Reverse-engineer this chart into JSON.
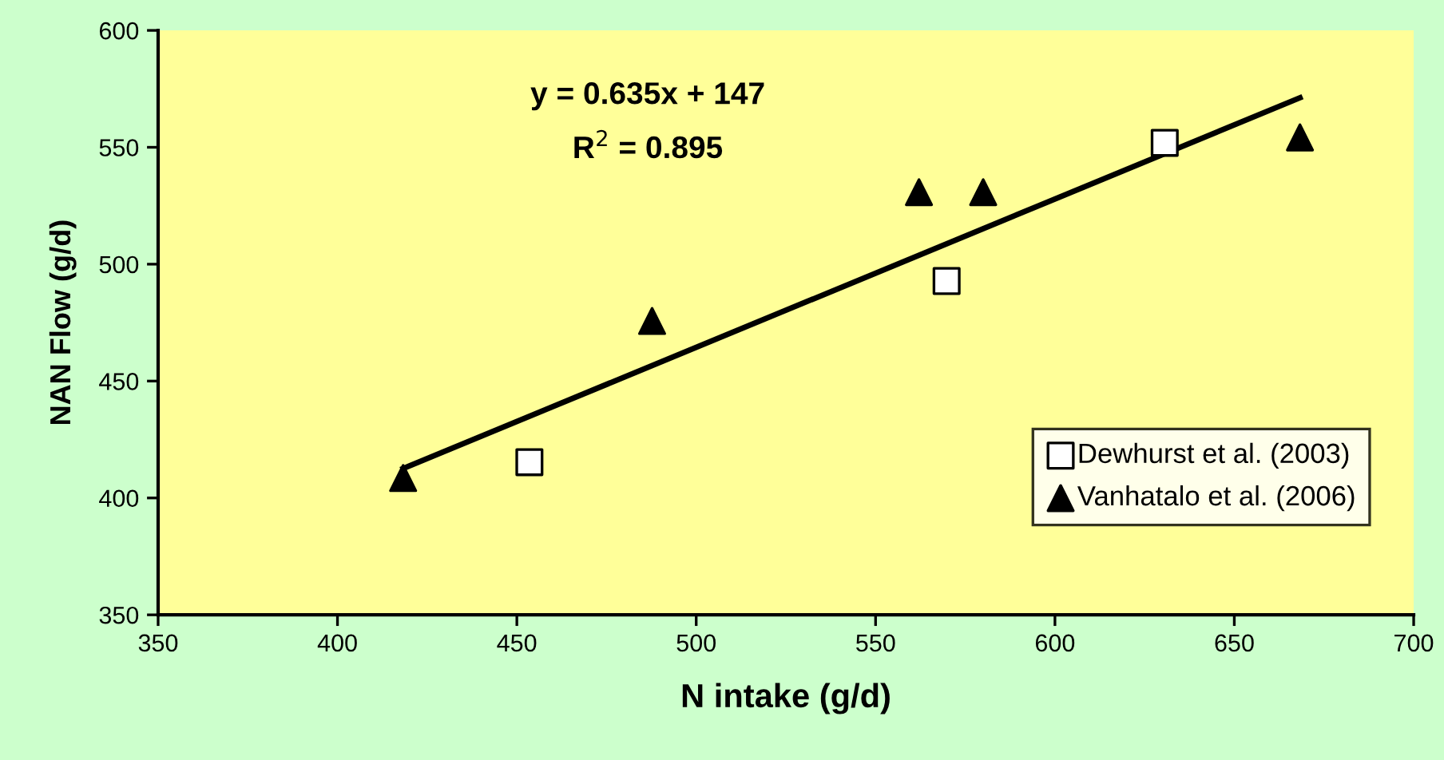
{
  "chart_data": {
    "type": "scatter",
    "xlabel": "N intake (g/d)",
    "ylabel": "NAN Flow (g/d)",
    "series": [
      {
        "name": "Dewhurst et al. (2003)",
        "color": "#ffffff",
        "marker": "square",
        "x": [
          453.5,
          569.8,
          630.6
        ],
        "values": [
          415.3,
          492.8,
          551.9
        ]
      },
      {
        "name": "Vanhatalo et al. (2006)",
        "color": "#000000",
        "marker": "triangle",
        "x": [
          418.3,
          487.7,
          562.1,
          580,
          668.3
        ],
        "values": [
          408.5,
          475.7,
          530.8,
          530.8,
          554.2
        ]
      },
      {
        "type": "line",
        "color": "#000000",
        "x": [
          418.3,
          668.3
        ],
        "values": [
          412.6,
          571.2
        ]
      }
    ],
    "annotations": [
      "y = 0.635x + 147",
      "R$^{2}$ = 0.895"
    ],
    "xlim": [
      350,
      700
    ],
    "xticks": [
      350,
      400,
      450,
      500,
      550,
      600,
      650,
      700
    ],
    "ylim": [
      350,
      600
    ],
    "yticks": [
      350,
      400,
      450,
      500,
      550,
      600
    ],
    "grid": false,
    "legend": "bottom right"
  }
}
